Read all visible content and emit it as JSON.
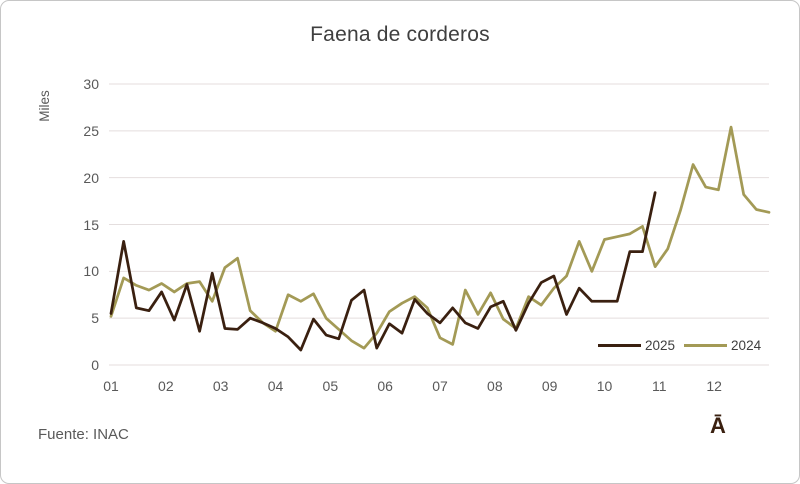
{
  "window": {
    "background": "#ffffff",
    "border_color": "#c6c6c6"
  },
  "chart_data": {
    "type": "line",
    "title": "Faena de corderos",
    "ylabel": "Miles",
    "xlabel": "",
    "ylim": [
      0,
      30
    ],
    "y_ticks": [
      0,
      5,
      10,
      15,
      20,
      25,
      30
    ],
    "x_tick_labels": [
      "01",
      "02",
      "03",
      "04",
      "05",
      "06",
      "07",
      "08",
      "09",
      "10",
      "11",
      "12"
    ],
    "x_unit": "weekly points across months 01-12",
    "grid": true,
    "gridline_color": "#e4dede",
    "legend_position": "inside-bottom-right",
    "series": [
      {
        "name": "2025",
        "color": "#3a2010",
        "values": [
          5.5,
          13.2,
          6.1,
          5.8,
          7.8,
          4.8,
          8.6,
          3.6,
          9.8,
          3.9,
          3.8,
          5.0,
          4.5,
          3.9,
          3.0,
          1.6,
          4.9,
          3.2,
          2.8,
          6.9,
          8.0,
          1.8,
          4.4,
          3.4,
          7.0,
          5.5,
          4.5,
          6.1,
          4.5,
          3.9,
          6.2,
          6.8,
          3.7,
          6.6,
          8.8,
          9.5,
          5.4,
          8.2,
          6.8,
          6.8,
          6.8,
          12.1,
          12.1,
          18.4
        ]
      },
      {
        "name": "2024",
        "color": "#a39a56",
        "values": [
          5.2,
          9.3,
          8.5,
          8.0,
          8.7,
          7.8,
          8.7,
          8.9,
          6.8,
          10.4,
          11.4,
          5.8,
          4.5,
          3.6,
          7.5,
          6.8,
          7.6,
          5.0,
          3.8,
          2.6,
          1.8,
          3.4,
          5.7,
          6.6,
          7.3,
          6.1,
          2.9,
          2.2,
          8.0,
          5.4,
          7.7,
          4.9,
          3.9,
          7.3,
          6.4,
          8.2,
          9.5,
          13.2,
          10.0,
          13.4,
          13.7,
          14.0,
          14.8,
          10.5,
          12.4,
          16.5,
          21.4,
          19.0,
          18.7,
          25.4,
          18.2,
          16.6,
          16.3
        ]
      }
    ]
  },
  "footer": {
    "source_label": "Fuente: INAC",
    "watermark": "Ā"
  }
}
